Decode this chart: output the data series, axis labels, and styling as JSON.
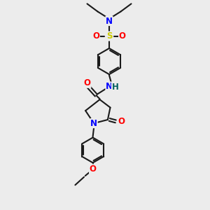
{
  "bg_color": "#ececec",
  "bond_color": "#1a1a1a",
  "bond_width": 1.5,
  "atom_colors": {
    "N": "#0000ff",
    "O": "#ff0000",
    "S": "#cccc00",
    "C": "#1a1a1a",
    "H": "#006060"
  },
  "font_size_atom": 8.5,
  "font_size_small": 7.5,
  "xlim": [
    0,
    10
  ],
  "ylim": [
    0,
    10
  ]
}
